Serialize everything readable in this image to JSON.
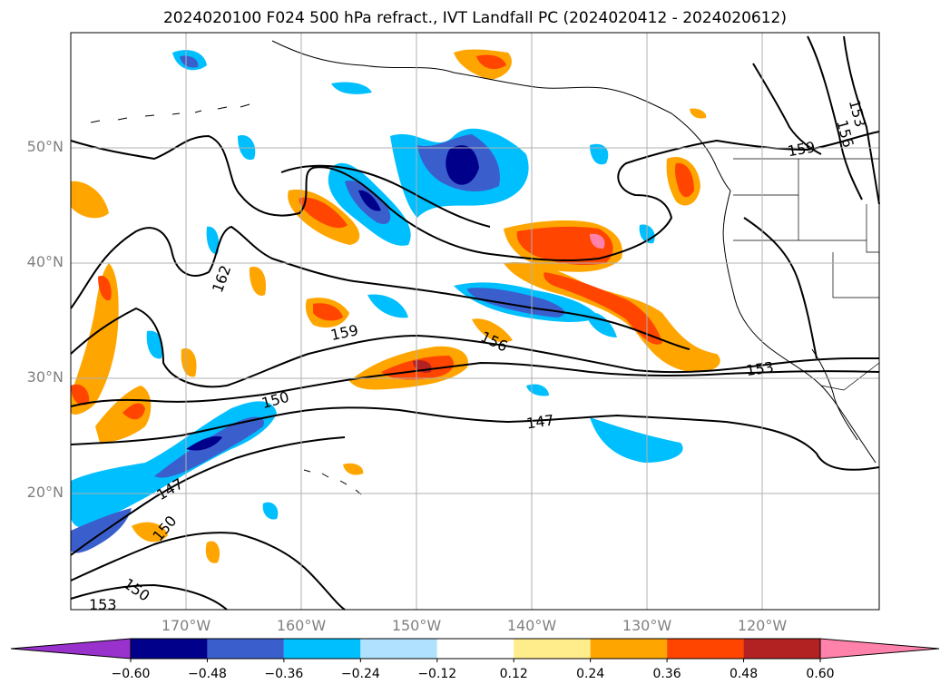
{
  "title": "2024020100 F024 500 hPa refract., IVT Landfall PC (2024020412 - 2024020612)",
  "map": {
    "lat_labels": [
      "50°N",
      "40°N",
      "30°N",
      "20°N"
    ],
    "lon_labels": [
      "170°W",
      "160°W",
      "150°W",
      "140°W",
      "130°W",
      "120°W"
    ],
    "contour_labels": [
      "162",
      "159",
      "156",
      "153",
      "150",
      "147",
      "147",
      "150",
      "150",
      "153",
      "153",
      "156",
      "159"
    ],
    "grid": true
  },
  "colorbar": {
    "ticks": [
      "−0.60",
      "−0.48",
      "−0.36",
      "−0.24",
      "−0.12",
      "0.12",
      "0.24",
      "0.36",
      "0.48",
      "0.60"
    ],
    "colors": [
      "#9932cc",
      "#00008b",
      "#3a5fcd",
      "#00bfff",
      "#b0e2ff",
      "#ffffff",
      "#ffec8b",
      "#ffa500",
      "#ff4500",
      "#b22222",
      "#ff82ab"
    ],
    "extend": "both"
  }
}
